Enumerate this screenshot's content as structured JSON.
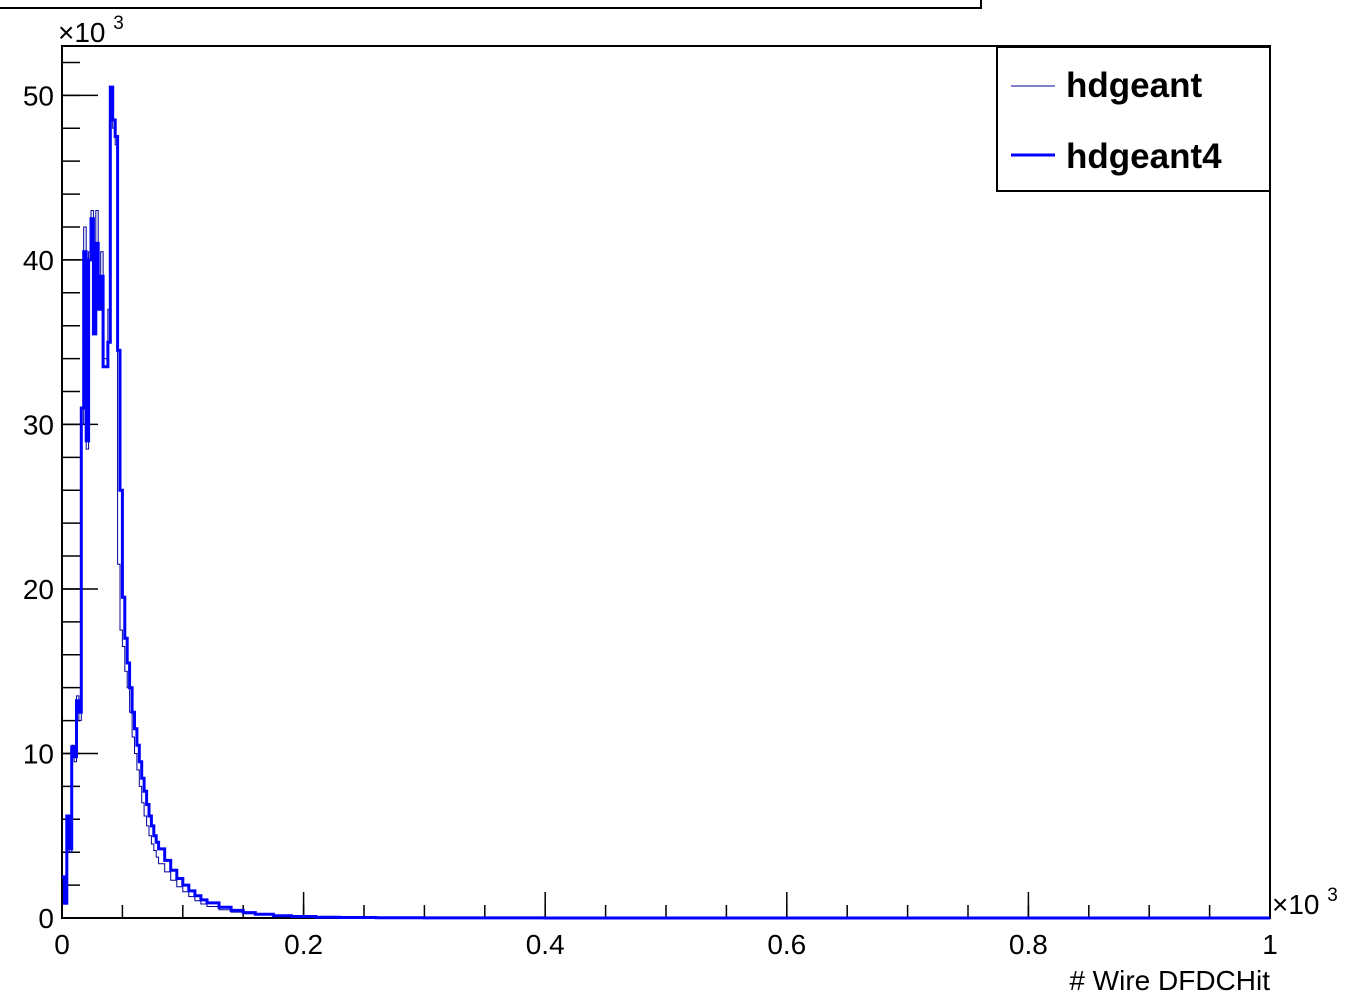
{
  "chart_data": {
    "type": "line",
    "step": true,
    "title": "",
    "xlabel": "# Wire DFDCHit",
    "ylabel": "",
    "x_multiplier_label": "×10",
    "x_multiplier_exp": "3",
    "y_multiplier_label": "×10",
    "y_multiplier_exp": "3",
    "xlim": [
      0,
      1
    ],
    "ylim": [
      0,
      53
    ],
    "x_ticks": [
      "0",
      "0.2",
      "0.4",
      "0.6",
      "0.8",
      "1"
    ],
    "y_ticks": [
      "0",
      "10",
      "20",
      "30",
      "40",
      "50"
    ],
    "legend_position": "top-right",
    "series": [
      {
        "name": "hdgeant",
        "color": "#000099",
        "line_width": 1,
        "x": [
          0,
          0.002,
          0.004,
          0.006,
          0.008,
          0.01,
          0.012,
          0.014,
          0.016,
          0.018,
          0.02,
          0.022,
          0.024,
          0.026,
          0.028,
          0.03,
          0.032,
          0.034,
          0.036,
          0.038,
          0.04,
          0.042,
          0.044,
          0.046,
          0.048,
          0.05,
          0.052,
          0.054,
          0.056,
          0.058,
          0.06,
          0.062,
          0.064,
          0.066,
          0.068,
          0.07,
          0.072,
          0.074,
          0.076,
          0.078,
          0.08,
          0.085,
          0.09,
          0.095,
          0.1,
          0.105,
          0.11,
          0.115,
          0.12,
          0.13,
          0.14,
          0.15,
          0.16,
          0.175,
          0.19,
          0.21,
          0.23,
          0.26,
          0.3,
          0.4,
          0.6,
          1.0
        ],
        "y": [
          2.2,
          1.0,
          6.0,
          4.0,
          10.5,
          9.5,
          13.5,
          12.0,
          30.0,
          42.0,
          28.5,
          40.5,
          43.0,
          36.0,
          43.0,
          38.0,
          40.5,
          34.0,
          34.0,
          37.0,
          48.5,
          48.0,
          47.0,
          21.5,
          17.5,
          16.5,
          15.0,
          14.0,
          12.5,
          11.0,
          10.0,
          9.0,
          8.0,
          7.0,
          6.2,
          5.6,
          5.0,
          4.5,
          4.1,
          3.7,
          3.3,
          2.8,
          2.3,
          1.9,
          1.6,
          1.3,
          1.05,
          0.85,
          0.7,
          0.5,
          0.36,
          0.26,
          0.18,
          0.11,
          0.07,
          0.04,
          0.02,
          0.01,
          0.005,
          0.002,
          0.0,
          0.0
        ]
      },
      {
        "name": "hdgeant4",
        "color": "#0000ff",
        "line_width": 3,
        "x": [
          0,
          0.002,
          0.004,
          0.006,
          0.008,
          0.01,
          0.012,
          0.014,
          0.016,
          0.018,
          0.02,
          0.022,
          0.024,
          0.026,
          0.028,
          0.03,
          0.032,
          0.034,
          0.036,
          0.038,
          0.04,
          0.042,
          0.044,
          0.046,
          0.048,
          0.05,
          0.052,
          0.054,
          0.056,
          0.058,
          0.06,
          0.062,
          0.064,
          0.066,
          0.068,
          0.07,
          0.072,
          0.074,
          0.076,
          0.078,
          0.08,
          0.085,
          0.09,
          0.095,
          0.1,
          0.105,
          0.11,
          0.115,
          0.12,
          0.13,
          0.14,
          0.15,
          0.16,
          0.175,
          0.19,
          0.21,
          0.23,
          0.26,
          0.3,
          0.4,
          0.6,
          1.0
        ],
        "y": [
          2.5,
          0.9,
          6.2,
          4.2,
          10.4,
          9.8,
          13.2,
          12.5,
          31.0,
          40.5,
          29.0,
          40.0,
          42.5,
          35.5,
          41.0,
          37.0,
          39.0,
          33.5,
          33.5,
          35.0,
          50.5,
          48.5,
          47.5,
          34.5,
          26.0,
          19.5,
          17.0,
          15.5,
          14.0,
          12.5,
          11.5,
          10.5,
          9.5,
          8.5,
          7.7,
          6.9,
          6.2,
          5.6,
          5.0,
          4.6,
          4.2,
          3.5,
          2.9,
          2.4,
          2.0,
          1.65,
          1.35,
          1.1,
          0.92,
          0.65,
          0.46,
          0.33,
          0.23,
          0.14,
          0.09,
          0.05,
          0.03,
          0.015,
          0.007,
          0.002,
          0.0,
          0.0
        ]
      }
    ]
  }
}
